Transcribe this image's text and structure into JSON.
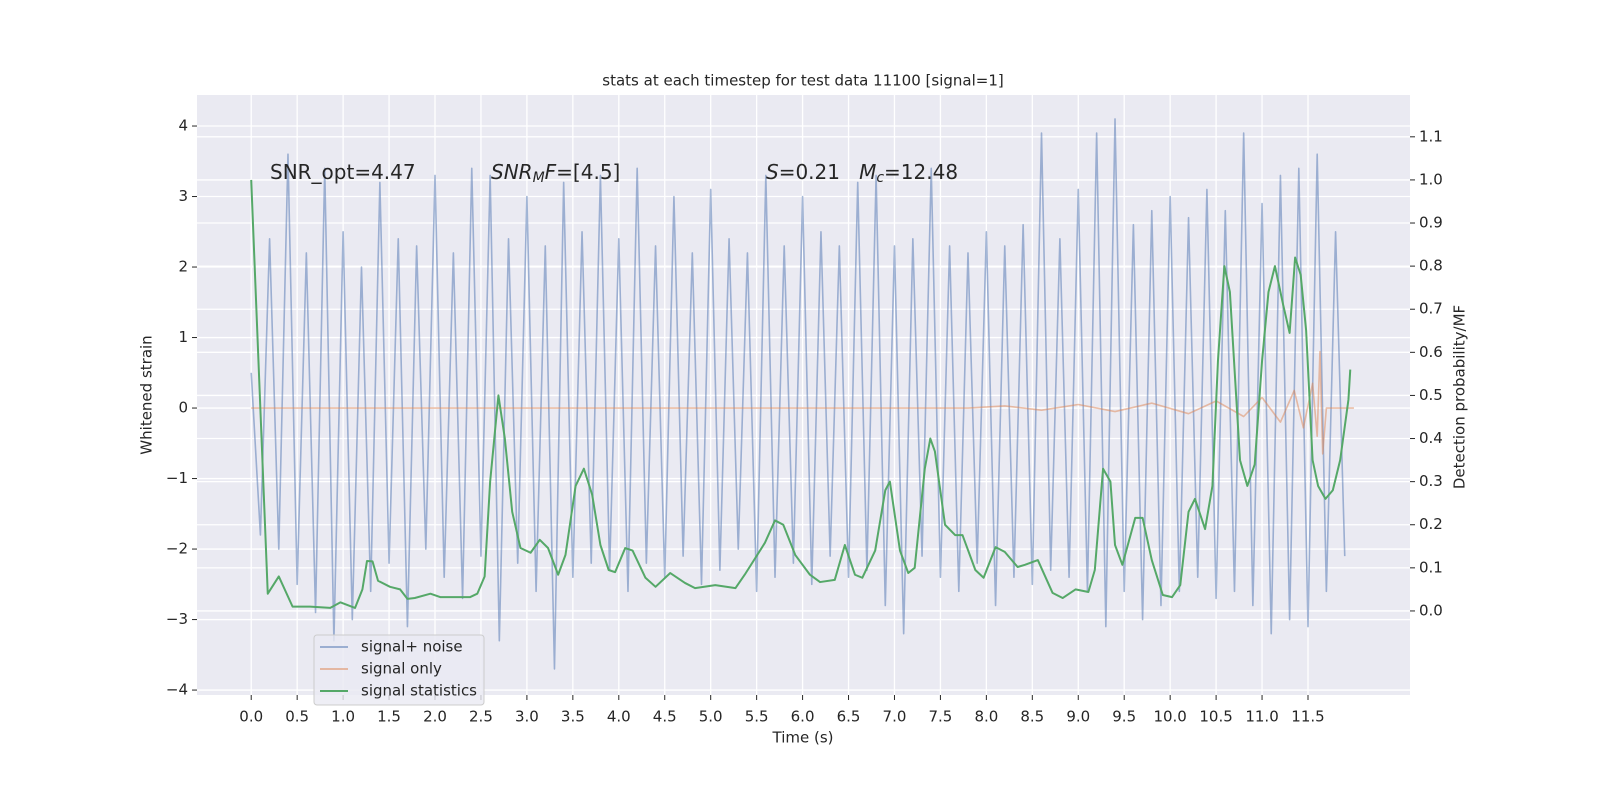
{
  "chart_data": {
    "type": "line",
    "title": "stats at each timestep for test data 11100 [signal=1]",
    "xlabel": "Time (s)",
    "ylabel": "Whitened strain",
    "y2label": "Detection probability/MF",
    "annotations": [
      [
        {
          "text": "SNR_opt=4.47"
        }
      ],
      [
        {
          "text": "SNR",
          "italic": true
        },
        {
          "text": "M",
          "italic": true,
          "sub": true
        },
        {
          "text": "F",
          "italic": true
        },
        {
          "text": "=[4.5]"
        }
      ],
      [
        {
          "text": "S",
          "italic": true
        },
        {
          "text": "=0.21   "
        },
        {
          "text": "M",
          "italic": true
        },
        {
          "text": "c",
          "italic": true,
          "sub": true
        },
        {
          "text": "=12.48"
        }
      ]
    ],
    "xlim": [
      -0.59,
      12.61
    ],
    "ylim": [
      -4.07,
      4.44
    ],
    "y2lim": [
      -0.195,
      1.197
    ],
    "xticks": [
      {
        "value": 0,
        "label": "0.0"
      },
      {
        "value": 0.5,
        "label": "0.5"
      },
      {
        "value": 1,
        "label": "1.0"
      },
      {
        "value": 1.5,
        "label": "1.5"
      },
      {
        "value": 2,
        "label": "2.0"
      },
      {
        "value": 2.5,
        "label": "2.5"
      },
      {
        "value": 3,
        "label": "3.0"
      },
      {
        "value": 3.5,
        "label": "3.5"
      },
      {
        "value": 4,
        "label": "4.0"
      },
      {
        "value": 4.5,
        "label": "4.5"
      },
      {
        "value": 5,
        "label": "5.0"
      },
      {
        "value": 5.5,
        "label": "5.5"
      },
      {
        "value": 6,
        "label": "6.0"
      },
      {
        "value": 6.5,
        "label": "6.5"
      },
      {
        "value": 7,
        "label": "7.0"
      },
      {
        "value": 7.5,
        "label": "7.5"
      },
      {
        "value": 8,
        "label": "8.0"
      },
      {
        "value": 8.5,
        "label": "8.5"
      },
      {
        "value": 9,
        "label": "9.0"
      },
      {
        "value": 9.5,
        "label": "9.5"
      },
      {
        "value": 10,
        "label": "10.0"
      },
      {
        "value": 10.5,
        "label": "10.5"
      },
      {
        "value": 11,
        "label": "11.0"
      },
      {
        "value": 11.5,
        "label": "11.5"
      }
    ],
    "yticks": [
      {
        "value": -4,
        "label": "−4"
      },
      {
        "value": -3,
        "label": "−3"
      },
      {
        "value": -2,
        "label": "−2"
      },
      {
        "value": -1,
        "label": "−1"
      },
      0,
      1,
      2,
      3,
      4
    ],
    "y2ticks": [
      {
        "value": 0,
        "label": "0.0"
      },
      {
        "value": 0.1,
        "label": "0.1"
      },
      {
        "value": 0.2,
        "label": "0.2"
      },
      {
        "value": 0.3,
        "label": "0.3"
      },
      {
        "value": 0.4,
        "label": "0.4"
      },
      {
        "value": 0.5,
        "label": "0.5"
      },
      {
        "value": 0.6,
        "label": "0.6"
      },
      {
        "value": 0.7,
        "label": "0.7"
      },
      {
        "value": 0.8,
        "label": "0.8"
      },
      {
        "value": 0.9,
        "label": "0.9"
      },
      {
        "value": 1,
        "label": "1.0"
      },
      {
        "value": 1.1,
        "label": "1.1"
      }
    ],
    "grid": true,
    "series": [
      {
        "name": "signal+ noise",
        "color": "#4c72b0",
        "opacity": 0.5,
        "x": [
          0,
          0.1,
          0.2,
          0.3,
          0.4,
          0.5,
          0.6,
          0.7,
          0.8,
          0.9,
          1,
          1.1,
          1.2,
          1.3,
          1.4,
          1.5,
          1.6,
          1.7,
          1.8,
          1.9,
          2,
          2.1,
          2.2,
          2.3,
          2.4,
          2.5,
          2.6,
          2.7,
          2.8,
          2.9,
          3,
          3.1,
          3.2,
          3.3,
          3.4,
          3.5,
          3.6,
          3.7,
          3.8,
          3.9,
          4,
          4.1,
          4.2,
          4.3,
          4.4,
          4.5,
          4.6,
          4.7,
          4.8,
          4.9,
          5,
          5.1,
          5.2,
          5.3,
          5.4,
          5.5,
          5.6,
          5.7,
          5.8,
          5.9,
          6,
          6.1,
          6.2,
          6.3,
          6.4,
          6.5,
          6.6,
          6.7,
          6.8,
          6.9,
          7,
          7.1,
          7.2,
          7.3,
          7.4,
          7.5,
          7.6,
          7.7,
          7.8,
          7.9,
          8,
          8.1,
          8.2,
          8.3,
          8.4,
          8.5,
          8.6,
          8.7,
          8.8,
          8.9,
          9,
          9.1,
          9.2,
          9.3,
          9.4,
          9.5,
          9.6,
          9.7,
          9.8,
          9.9,
          10,
          10.1,
          10.2,
          10.3,
          10.4,
          10.5,
          10.6,
          10.7,
          10.8,
          10.9,
          11,
          11.1,
          11.2,
          11.3,
          11.4,
          11.5,
          11.6,
          11.7,
          11.8,
          11.9
        ],
        "values": [
          0.5,
          -1.8,
          2.4,
          -2.0,
          3.6,
          -2.5,
          2.2,
          -2.9,
          3.4,
          -3.3,
          2.5,
          -3.0,
          2.0,
          -2.6,
          3.2,
          -2.2,
          2.4,
          -3.1,
          2.3,
          -2.0,
          3.3,
          -2.4,
          2.2,
          -2.7,
          3.4,
          -2.1,
          3.3,
          -3.3,
          2.4,
          -2.2,
          3.0,
          -2.6,
          2.3,
          -3.7,
          3.2,
          -2.4,
          2.5,
          -2.2,
          3.3,
          -2.3,
          2.4,
          -2.6,
          3.4,
          -2.2,
          2.3,
          -2.4,
          3.0,
          -2.1,
          2.2,
          -2.5,
          3.1,
          -2.3,
          2.4,
          -2.0,
          2.2,
          -2.6,
          3.3,
          -2.4,
          2.3,
          -2.2,
          3.0,
          -2.5,
          2.5,
          -2.1,
          2.3,
          -2.4,
          3.2,
          -2.3,
          3.3,
          -2.8,
          2.3,
          -3.2,
          2.4,
          -2.1,
          3.4,
          -2.4,
          2.3,
          -2.6,
          2.2,
          -2.2,
          2.5,
          -2.8,
          2.3,
          -2.4,
          2.6,
          -2.5,
          3.9,
          -2.3,
          2.4,
          -2.4,
          3.1,
          -2.6,
          3.9,
          -3.1,
          4.1,
          -2.6,
          2.6,
          -3.0,
          2.8,
          -2.8,
          3.0,
          -2.6,
          2.7,
          -2.4,
          3.1,
          -2.7,
          2.8,
          -2.6,
          3.9,
          -2.8,
          2.9,
          -3.2,
          3.3,
          -3.0,
          3.4,
          -3.1,
          3.6,
          -2.6,
          2.5,
          -2.1
        ]
      },
      {
        "name": "signal only",
        "color": "#dd8452",
        "opacity": 0.5,
        "x": [
          0,
          7.8,
          8.2,
          8.6,
          9.0,
          9.4,
          9.8,
          10.2,
          10.5,
          10.8,
          11.0,
          11.2,
          11.35,
          11.45,
          11.55,
          11.6,
          11.63,
          11.66,
          11.7,
          12.0
        ],
        "values": [
          0,
          0,
          0.03,
          -0.03,
          0.05,
          -0.05,
          0.07,
          -0.08,
          0.1,
          -0.12,
          0.15,
          -0.2,
          0.25,
          -0.28,
          0.35,
          -0.4,
          0.8,
          -0.65,
          0,
          0
        ]
      },
      {
        "name": "signal statistics",
        "color": "#55a868",
        "opacity": 1,
        "axis": "y2",
        "x": [
          0,
          0.18,
          0.3,
          0.45,
          0.64,
          0.86,
          0.97,
          1.13,
          1.21,
          1.26,
          1.32,
          1.38,
          1.51,
          1.62,
          1.7,
          1.78,
          1.95,
          2.06,
          2.22,
          2.38,
          2.46,
          2.54,
          2.6,
          2.69,
          2.76,
          2.84,
          2.93,
          3.04,
          3.14,
          3.23,
          3.34,
          3.42,
          3.53,
          3.62,
          3.71,
          3.8,
          3.89,
          3.96,
          4.07,
          4.15,
          4.29,
          4.4,
          4.56,
          4.72,
          4.83,
          5.05,
          5.27,
          5.37,
          5.59,
          5.7,
          5.79,
          5.92,
          6.08,
          6.19,
          6.35,
          6.46,
          6.57,
          6.65,
          6.79,
          6.9,
          6.95,
          7.06,
          7.15,
          7.22,
          7.33,
          7.39,
          7.44,
          7.55,
          7.66,
          7.74,
          7.88,
          7.97,
          8.1,
          8.2,
          8.34,
          8.42,
          8.56,
          8.72,
          8.83,
          8.97,
          9.11,
          9.18,
          9.27,
          9.35,
          9.4,
          9.48,
          9.62,
          9.7,
          9.8,
          9.92,
          10.02,
          10.11,
          10.2,
          10.27,
          10.38,
          10.46,
          10.52,
          10.59,
          10.65,
          10.76,
          10.84,
          10.92,
          11.0,
          11.07,
          11.14,
          11.23,
          11.3,
          11.36,
          11.42,
          11.48,
          11.55,
          11.61,
          11.69,
          11.77,
          11.85,
          11.94,
          11.96
        ],
        "values": [
          1.0,
          0.04,
          0.08,
          0.01,
          0.01,
          0.007,
          0.02,
          0.007,
          0.05,
          0.116,
          0.115,
          0.07,
          0.056,
          0.05,
          0.028,
          0.03,
          0.04,
          0.032,
          0.032,
          0.032,
          0.04,
          0.08,
          0.3,
          0.5,
          0.4,
          0.23,
          0.146,
          0.135,
          0.165,
          0.146,
          0.084,
          0.13,
          0.29,
          0.33,
          0.27,
          0.153,
          0.095,
          0.09,
          0.146,
          0.14,
          0.077,
          0.056,
          0.088,
          0.065,
          0.053,
          0.06,
          0.053,
          0.084,
          0.158,
          0.21,
          0.2,
          0.13,
          0.084,
          0.067,
          0.072,
          0.153,
          0.084,
          0.077,
          0.14,
          0.28,
          0.3,
          0.14,
          0.088,
          0.1,
          0.33,
          0.4,
          0.37,
          0.2,
          0.176,
          0.176,
          0.095,
          0.077,
          0.148,
          0.137,
          0.102,
          0.107,
          0.118,
          0.042,
          0.03,
          0.05,
          0.044,
          0.095,
          0.33,
          0.3,
          0.153,
          0.107,
          0.216,
          0.216,
          0.118,
          0.037,
          0.032,
          0.06,
          0.23,
          0.26,
          0.19,
          0.29,
          0.58,
          0.8,
          0.74,
          0.35,
          0.29,
          0.34,
          0.58,
          0.74,
          0.8,
          0.71,
          0.645,
          0.82,
          0.78,
          0.65,
          0.35,
          0.29,
          0.26,
          0.28,
          0.35,
          0.49,
          0.56
        ]
      }
    ]
  }
}
